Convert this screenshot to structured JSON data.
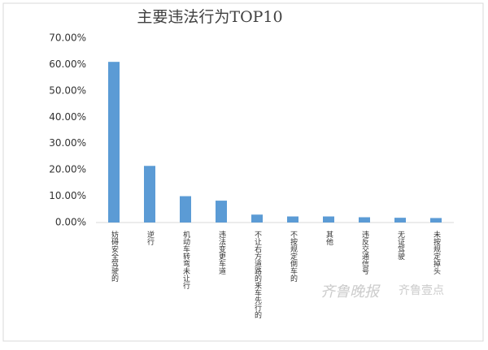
{
  "chart_data": {
    "type": "bar",
    "title": "主要违法行为TOP10",
    "categories": [
      "妨碍安全驾驶的",
      "逆行",
      "机动车转弯未让行",
      "违法变更车道",
      "不让右方道路的来车先行的",
      "不按规定倒车的",
      "其他",
      "违反交通信号",
      "无证驾驶",
      "未按规定掉头"
    ],
    "values": [
      61,
      21.5,
      10,
      8.3,
      3,
      2.3,
      2.3,
      2,
      1.8,
      1.7
    ],
    "color": "#5b9bd5",
    "ylim": [
      0,
      70
    ],
    "yticks": [
      {
        "value": 0,
        "label": "0.00%"
      },
      {
        "value": 10,
        "label": "10.00%"
      },
      {
        "value": 20,
        "label": "20.00%"
      },
      {
        "value": 30,
        "label": "30.00%"
      },
      {
        "value": 40,
        "label": "40.00%"
      },
      {
        "value": 50,
        "label": "50.00%"
      },
      {
        "value": 60,
        "label": "60.00%"
      },
      {
        "value": 70,
        "label": "70.00%"
      }
    ],
    "grid": false,
    "watermark": [
      "齐鲁晚报",
      "齐鲁壹点"
    ]
  }
}
